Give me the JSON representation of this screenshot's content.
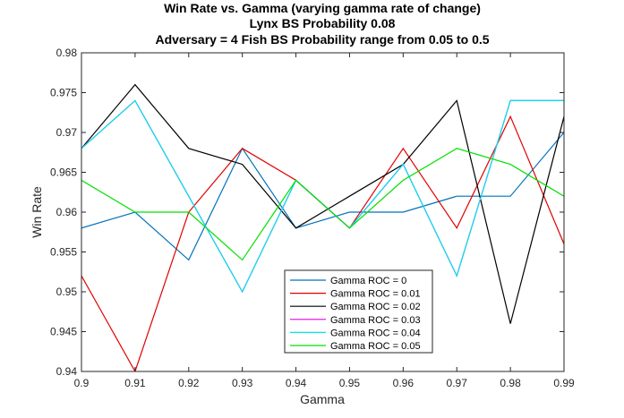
{
  "chart_data": {
    "type": "line",
    "title_lines": [
      "Win Rate vs. Gamma (varying gamma rate of change)",
      "Lynx BS Probability 0.08",
      "Adversary = 4 Fish BS Probability range from 0.05 to 0.5"
    ],
    "xlabel": "Gamma",
    "ylabel": "Win Rate",
    "xlim": [
      0.9,
      0.99
    ],
    "ylim": [
      0.94,
      0.98
    ],
    "x": [
      0.9,
      0.91,
      0.92,
      0.93,
      0.94,
      0.95,
      0.96,
      0.97,
      0.98,
      0.99
    ],
    "x_tick_labels": [
      "0.9",
      "0.91",
      "0.92",
      "0.93",
      "0.94",
      "0.95",
      "0.96",
      "0.97",
      "0.98",
      "0.99"
    ],
    "y_ticks": [
      0.94,
      0.945,
      0.95,
      0.955,
      0.96,
      0.965,
      0.97,
      0.975,
      0.98
    ],
    "y_tick_labels": [
      "0.94",
      "0.945",
      "0.95",
      "0.955",
      "0.96",
      "0.965",
      "0.97",
      "0.975",
      "0.98"
    ],
    "grid": false,
    "legend_position": "bottom-center",
    "series": [
      {
        "name": "Gamma ROC = 0",
        "color": "#0072BD",
        "values": [
          0.958,
          0.96,
          0.954,
          0.968,
          0.958,
          0.96,
          0.96,
          0.962,
          0.962,
          0.97
        ]
      },
      {
        "name": "Gamma ROC = 0.01",
        "color": "#E00000",
        "values": [
          0.952,
          0.94,
          0.96,
          0.968,
          0.964,
          0.958,
          0.968,
          0.958,
          0.972,
          0.956
        ]
      },
      {
        "name": "Gamma ROC = 0.02",
        "color": "#000000",
        "values": [
          0.968,
          0.976,
          0.968,
          0.966,
          0.958,
          0.962,
          0.966,
          0.974,
          0.946,
          0.972
        ]
      },
      {
        "name": "Gamma ROC = 0.03",
        "color": "#E000E0",
        "values": [
          0.968,
          0.974,
          0.962,
          0.95,
          0.964,
          0.958,
          0.966,
          0.952,
          0.974,
          0.974
        ]
      },
      {
        "name": "Gamma ROC = 0.04",
        "color": "#00E5EE",
        "values": [
          0.968,
          0.974,
          0.962,
          0.95,
          0.964,
          0.958,
          0.966,
          0.952,
          0.974,
          0.974
        ]
      },
      {
        "name": "Gamma ROC = 0.05",
        "color": "#00E000",
        "values": [
          0.964,
          0.96,
          0.96,
          0.954,
          0.964,
          0.958,
          0.964,
          0.968,
          0.966,
          0.962
        ]
      }
    ]
  }
}
